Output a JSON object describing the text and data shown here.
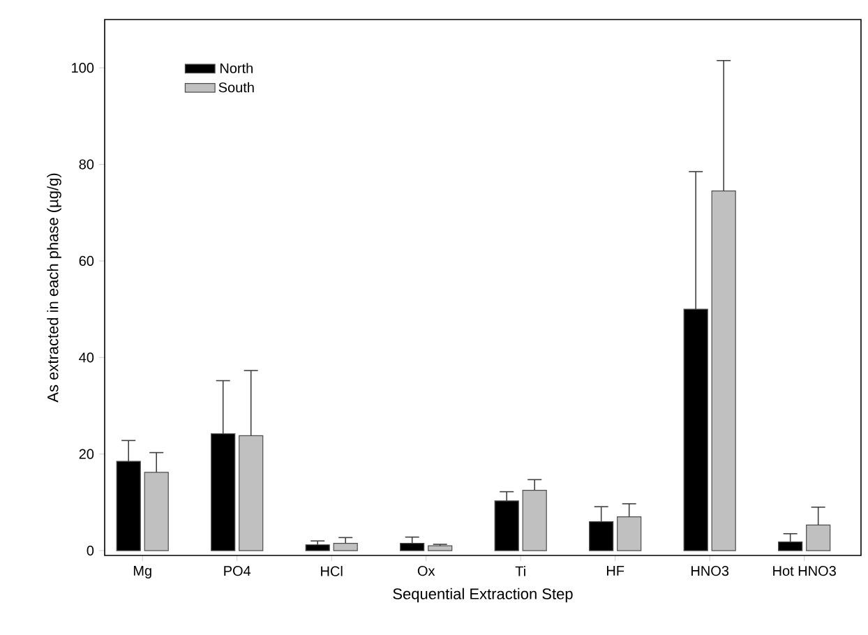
{
  "chart_data": {
    "type": "bar",
    "xlabel": "Sequential Extraction Step",
    "ylabel": "As extracted in each phase (µg/g)",
    "categories": [
      "Mg",
      "PO4",
      "HCl",
      "Ox",
      "Ti",
      "HF",
      "HNO3",
      "Hot HNO3"
    ],
    "series": [
      {
        "name": "North",
        "color": "#000000",
        "values": [
          18.5,
          24.2,
          1.2,
          1.5,
          10.3,
          6.0,
          50.0,
          1.8
        ],
        "errors": [
          [
            18.5,
            22.8
          ],
          [
            24.2,
            35.2
          ],
          [
            1.2,
            2.0
          ],
          [
            1.5,
            2.8
          ],
          [
            10.3,
            12.2
          ],
          [
            6.0,
            9.1
          ],
          [
            50.0,
            78.5
          ],
          [
            1.8,
            3.5
          ]
        ]
      },
      {
        "name": "South",
        "color": "#c0c0c0",
        "values": [
          16.2,
          23.8,
          1.5,
          1.0,
          12.5,
          7.0,
          74.5,
          5.3
        ],
        "errors": [
          [
            16.2,
            20.3
          ],
          [
            23.8,
            37.3
          ],
          [
            1.5,
            2.7
          ],
          [
            1.0,
            1.3
          ],
          [
            12.5,
            14.7
          ],
          [
            7.0,
            9.7
          ],
          [
            74.5,
            101.5
          ],
          [
            5.3,
            9.0
          ]
        ]
      }
    ],
    "ylim": [
      -1,
      110
    ],
    "yticks": [
      0,
      20,
      40,
      60,
      80,
      100
    ],
    "legend": "top left",
    "grid": false
  }
}
